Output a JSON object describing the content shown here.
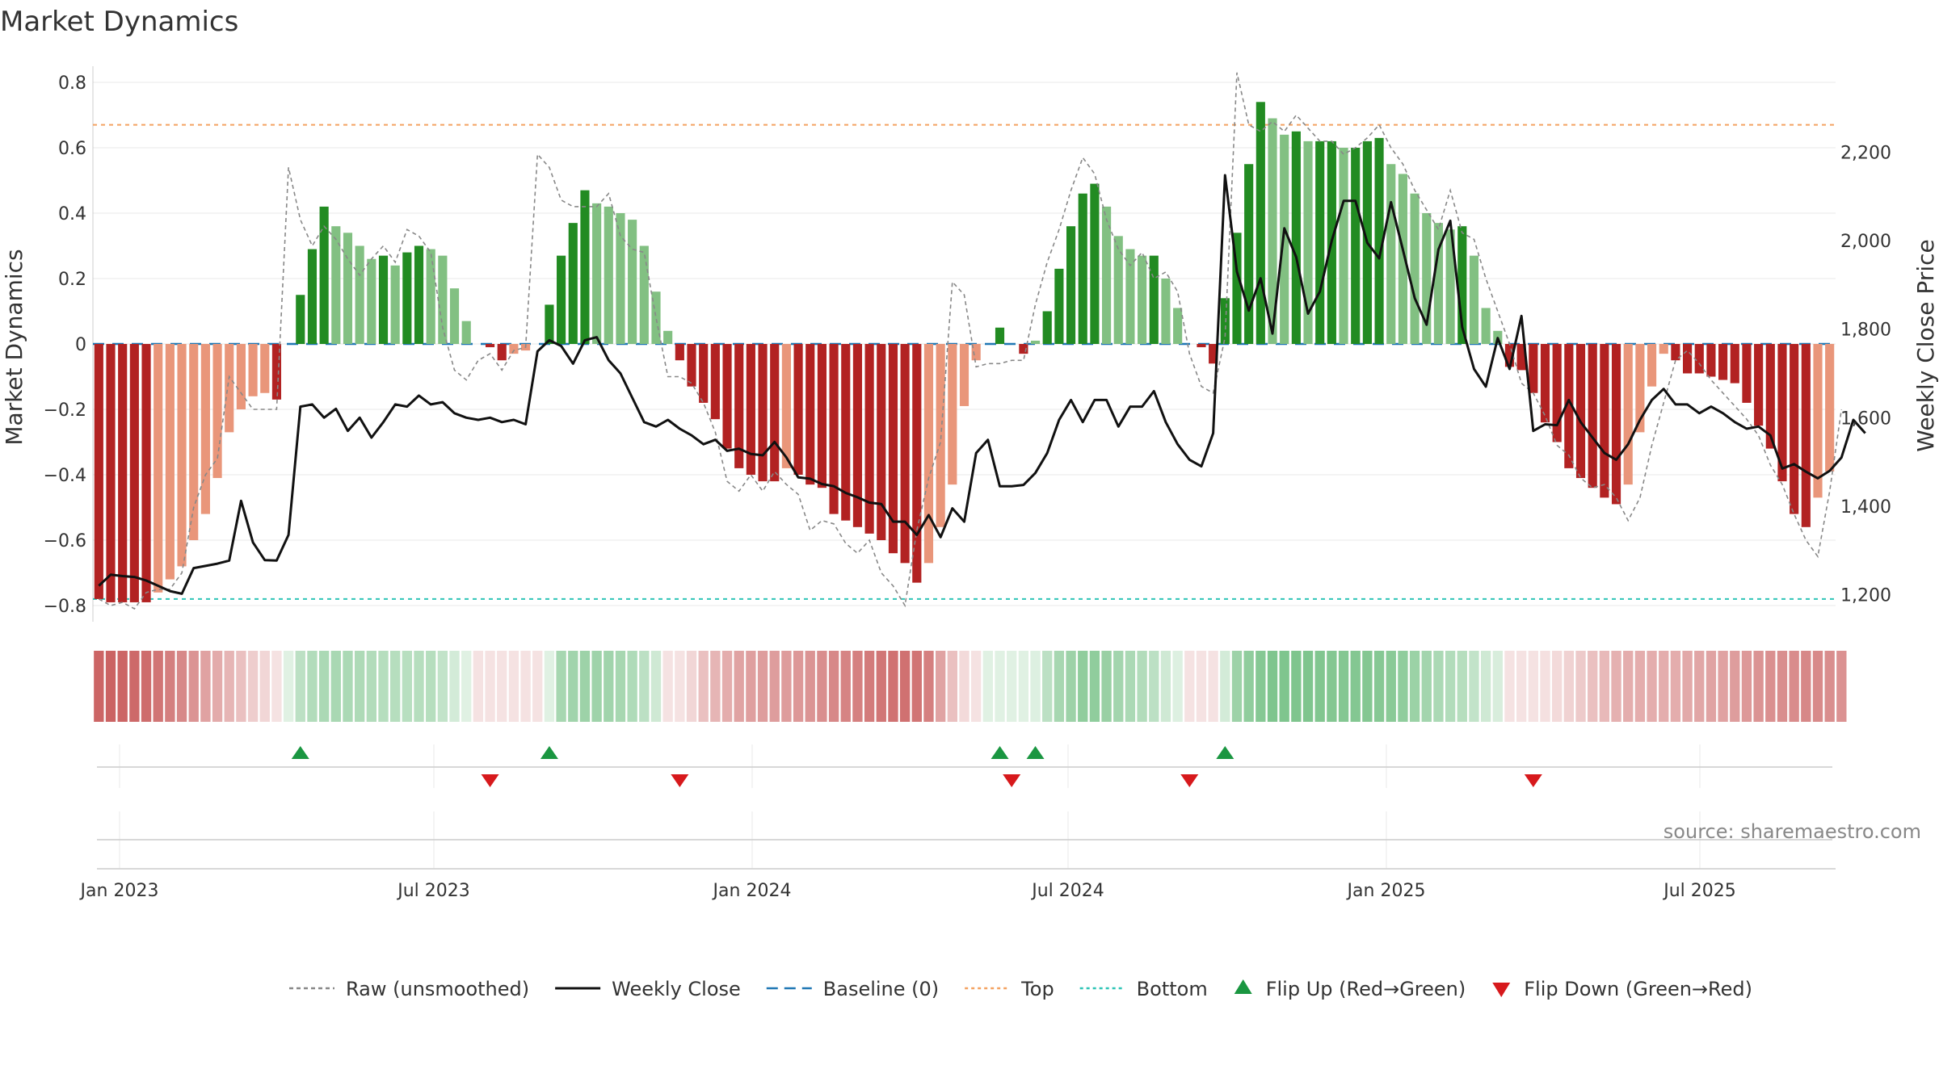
{
  "chart_data": {
    "type": "bar",
    "title": "Market Dynamics",
    "ylabel": "Market Dynamics",
    "y2label": "Weekly Close Price",
    "ylim": [
      -0.8,
      0.8
    ],
    "y2lim": [
      1200,
      2200
    ],
    "yticks": [
      "0.8",
      "0.6",
      "0.4",
      "0.2",
      "0",
      "−0.2",
      "−0.4",
      "−0.6",
      "−0.8"
    ],
    "y2ticks": [
      "2,200",
      "2,000",
      "1,800",
      "1,600",
      "1,400",
      "1,200"
    ],
    "xticks": [
      "Jan 2023",
      "Jul 2023",
      "Jan 2024",
      "Jul 2024",
      "Jan 2025",
      "Jul 2025"
    ],
    "top_level": 0.67,
    "bottom_level": -0.78,
    "baseline": 0,
    "series": [
      {
        "name": "Raw (unsmoothed)",
        "style": "dashed",
        "color": "#888888"
      },
      {
        "name": "Weekly Close",
        "style": "solid",
        "color": "#111111"
      },
      {
        "name": "Baseline (0)",
        "style": "dashed",
        "color": "#1f77b4"
      },
      {
        "name": "Top",
        "style": "dotted",
        "color": "#f4a261"
      },
      {
        "name": "Bottom",
        "style": "dotted",
        "color": "#2ec4b6"
      },
      {
        "name": "Flip Up (Red→Green)",
        "style": "marker-up",
        "color": "#1a9641"
      },
      {
        "name": "Flip Down (Green→Red)",
        "style": "marker-down",
        "color": "#d7191c"
      }
    ],
    "legend_position": "bottom-center",
    "bars": [
      -0.78,
      -0.79,
      -0.79,
      -0.79,
      -0.79,
      -0.76,
      -0.72,
      -0.68,
      -0.6,
      -0.52,
      -0.41,
      -0.27,
      -0.2,
      -0.16,
      -0.15,
      -0.17,
      0.0,
      0.15,
      0.29,
      0.42,
      0.36,
      0.34,
      0.3,
      0.26,
      0.27,
      0.24,
      0.28,
      0.3,
      0.29,
      0.27,
      0.17,
      0.07,
      0.0,
      -0.01,
      -0.05,
      -0.03,
      -0.02,
      0.0,
      0.12,
      0.27,
      0.37,
      0.47,
      0.43,
      0.42,
      0.4,
      0.38,
      0.3,
      0.16,
      0.04,
      -0.05,
      -0.13,
      -0.18,
      -0.23,
      -0.32,
      -0.38,
      -0.4,
      -0.42,
      -0.42,
      -0.38,
      -0.4,
      -0.43,
      -0.44,
      -0.52,
      -0.54,
      -0.56,
      -0.58,
      -0.6,
      -0.64,
      -0.67,
      -0.73,
      -0.67,
      -0.56,
      -0.43,
      -0.19,
      -0.05,
      0.0,
      0.05,
      0.0,
      -0.03,
      0.01,
      0.1,
      0.23,
      0.36,
      0.46,
      0.49,
      0.42,
      0.33,
      0.29,
      0.27,
      0.27,
      0.2,
      0.11,
      0.0,
      -0.01,
      -0.06,
      0.14,
      0.34,
      0.55,
      0.74,
      0.69,
      0.64,
      0.65,
      0.62,
      0.62,
      0.62,
      0.6,
      0.6,
      0.62,
      0.63,
      0.55,
      0.52,
      0.46,
      0.4,
      0.37,
      0.35,
      0.36,
      0.27,
      0.11,
      0.04,
      -0.07,
      -0.08,
      -0.15,
      -0.24,
      -0.3,
      -0.38,
      -0.41,
      -0.44,
      -0.47,
      -0.49,
      -0.43,
      -0.27,
      -0.13,
      -0.03,
      -0.05,
      -0.09,
      -0.09,
      -0.1,
      -0.11,
      -0.12,
      -0.18,
      -0.25,
      -0.32,
      -0.42,
      -0.52,
      -0.56,
      -0.47,
      -0.39
    ],
    "raw": [
      -0.78,
      -0.8,
      -0.79,
      -0.81,
      -0.76,
      -0.75,
      -0.75,
      -0.7,
      -0.5,
      -0.4,
      -0.35,
      -0.1,
      -0.15,
      -0.2,
      -0.2,
      -0.2,
      0.54,
      0.38,
      0.3,
      0.36,
      0.32,
      0.26,
      0.21,
      0.26,
      0.3,
      0.25,
      0.35,
      0.33,
      0.28,
      0.05,
      -0.08,
      -0.11,
      -0.05,
      -0.03,
      -0.08,
      -0.02,
      -0.01,
      0.58,
      0.54,
      0.44,
      0.42,
      0.42,
      0.42,
      0.46,
      0.33,
      0.29,
      0.28,
      0.08,
      -0.1,
      -0.1,
      -0.12,
      -0.18,
      -0.27,
      -0.42,
      -0.45,
      -0.4,
      -0.45,
      -0.39,
      -0.43,
      -0.46,
      -0.57,
      -0.54,
      -0.55,
      -0.61,
      -0.64,
      -0.6,
      -0.7,
      -0.74,
      -0.8,
      -0.57,
      -0.41,
      -0.3,
      0.19,
      0.15,
      -0.07,
      -0.06,
      -0.06,
      -0.05,
      -0.05,
      0.12,
      0.25,
      0.35,
      0.47,
      0.57,
      0.52,
      0.38,
      0.29,
      0.24,
      0.28,
      0.2,
      0.22,
      0.16,
      -0.03,
      -0.13,
      -0.15,
      0.02,
      0.83,
      0.67,
      0.65,
      0.68,
      0.65,
      0.7,
      0.66,
      0.62,
      0.62,
      0.58,
      0.6,
      0.63,
      0.67,
      0.6,
      0.55,
      0.47,
      0.41,
      0.35,
      0.47,
      0.34,
      0.32,
      0.2,
      0.1,
      0.0,
      -0.12,
      -0.15,
      -0.22,
      -0.31,
      -0.34,
      -0.41,
      -0.44,
      -0.43,
      -0.47,
      -0.54,
      -0.47,
      -0.31,
      -0.18,
      -0.05,
      -0.02,
      -0.06,
      -0.11,
      -0.15,
      -0.19,
      -0.23,
      -0.28,
      -0.37,
      -0.43,
      -0.52,
      -0.6,
      -0.65,
      -0.45,
      -0.2
    ],
    "close": [
      1220,
      1245,
      1242,
      1240,
      1232,
      1220,
      1208,
      1202,
      1260,
      1265,
      1270,
      1277,
      1412,
      1318,
      1278,
      1277,
      1335,
      1625,
      1630,
      1600,
      1620,
      1570,
      1600,
      1555,
      1590,
      1630,
      1625,
      1650,
      1630,
      1635,
      1610,
      1600,
      1595,
      1600,
      1590,
      1595,
      1585,
      1750,
      1775,
      1762,
      1722,
      1775,
      1782,
      1730,
      1700,
      1645,
      1590,
      1580,
      1595,
      1575,
      1560,
      1540,
      1550,
      1525,
      1530,
      1518,
      1515,
      1545,
      1510,
      1465,
      1462,
      1450,
      1445,
      1430,
      1420,
      1408,
      1405,
      1365,
      1365,
      1335,
      1380,
      1330,
      1395,
      1365,
      1520,
      1550,
      1445,
      1445,
      1448,
      1475,
      1520,
      1595,
      1640,
      1590,
      1640,
      1640,
      1580,
      1625,
      1625,
      1660,
      1590,
      1540,
      1505,
      1490,
      1565,
      2148,
      1930,
      1842,
      1915,
      1790,
      2028,
      1963,
      1835,
      1885,
      2000,
      2090,
      2090,
      1995,
      1960,
      2087,
      1980,
      1870,
      1810,
      1980,
      2045,
      1805,
      1710,
      1670,
      1780,
      1710,
      1830,
      1570,
      1585,
      1583,
      1640,
      1590,
      1555,
      1520,
      1505,
      1540,
      1595,
      1640,
      1665,
      1630,
      1630,
      1610,
      1625,
      1610,
      1590,
      1575,
      1580,
      1560,
      1485,
      1495,
      1478,
      1463,
      1480,
      1510,
      1595,
      1565
    ],
    "regime_intensity": [
      -0.75,
      -0.76,
      -0.75,
      -0.73,
      -0.71,
      -0.68,
      -0.63,
      -0.58,
      -0.52,
      -0.46,
      -0.41,
      -0.36,
      -0.3,
      -0.25,
      -0.2,
      -0.14,
      0.1,
      0.3,
      0.35,
      0.38,
      0.39,
      0.38,
      0.37,
      0.35,
      0.33,
      0.33,
      0.32,
      0.33,
      0.33,
      0.28,
      0.2,
      0.08,
      -0.06,
      -0.1,
      -0.1,
      -0.09,
      -0.08,
      -0.06,
      0.12,
      0.4,
      0.43,
      0.45,
      0.44,
      0.43,
      0.4,
      0.36,
      0.3,
      0.22,
      -0.05,
      -0.12,
      -0.2,
      -0.3,
      -0.36,
      -0.4,
      -0.45,
      -0.47,
      -0.48,
      -0.48,
      -0.49,
      -0.5,
      -0.52,
      -0.55,
      -0.58,
      -0.6,
      -0.62,
      -0.65,
      -0.67,
      -0.69,
      -0.7,
      -0.68,
      -0.62,
      -0.45,
      -0.3,
      -0.18,
      -0.08,
      0.05,
      0.1,
      0.12,
      0.12,
      0.15,
      0.3,
      0.4,
      0.45,
      0.5,
      0.5,
      0.47,
      0.42,
      0.38,
      0.35,
      0.3,
      0.22,
      0.15,
      -0.05,
      -0.1,
      -0.07,
      0.2,
      0.45,
      0.5,
      0.55,
      0.58,
      0.58,
      0.58,
      0.58,
      0.57,
      0.56,
      0.56,
      0.56,
      0.56,
      0.55,
      0.53,
      0.5,
      0.46,
      0.42,
      0.38,
      0.35,
      0.33,
      0.28,
      0.22,
      0.18,
      -0.05,
      -0.08,
      -0.1,
      -0.15,
      -0.18,
      -0.22,
      -0.26,
      -0.3,
      -0.34,
      -0.38,
      -0.4,
      -0.4,
      -0.4,
      -0.4,
      -0.4,
      -0.42,
      -0.44,
      -0.45,
      -0.46,
      -0.48,
      -0.5,
      -0.52,
      -0.54,
      -0.55,
      -0.56,
      -0.58,
      -0.57,
      -0.55,
      -0.53
    ],
    "flip_up_index": [
      17,
      38,
      76,
      79,
      95
    ],
    "flip_down_index": [
      33,
      49,
      77,
      92,
      121
    ],
    "colors": {
      "strong_green": "#228b22",
      "light_green": "#82c082",
      "strong_red": "#b22222",
      "light_red": "#e9967a",
      "flip_up": "#1a9641",
      "flip_down": "#d7191c"
    },
    "source": "source: sharemaestro.com"
  }
}
